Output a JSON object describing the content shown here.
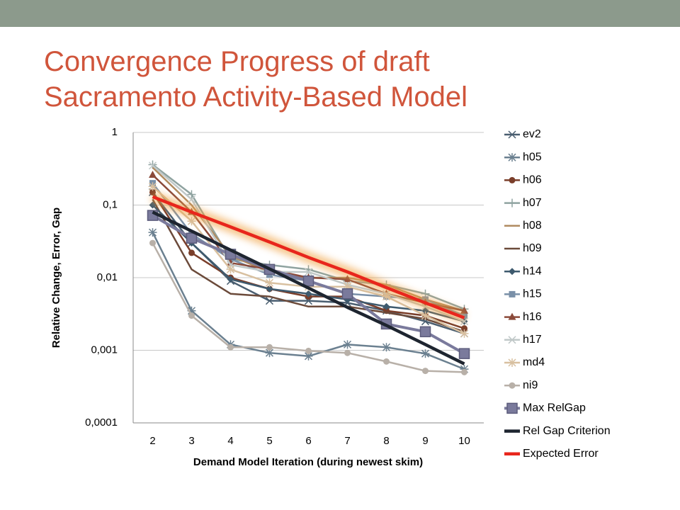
{
  "slide": {
    "title_lines": [
      "Convergence Progress of draft",
      "Sacramento Activity-Based Model"
    ]
  },
  "chart_data": {
    "type": "line",
    "log_scale": true,
    "grid": true,
    "ylabel": "Relative Change, Error, Gap",
    "xlabel": "Demand Model Iteration (during newest skim)",
    "categories": [
      "2",
      "3",
      "4",
      "5",
      "6",
      "7",
      "8",
      "9",
      "10"
    ],
    "ylim": [
      0.0001,
      1
    ],
    "yticks": [
      {
        "value": 0.0001,
        "label": "0,0001"
      },
      {
        "value": 0.001,
        "label": "0,001"
      },
      {
        "value": 0.01,
        "label": "0,01"
      },
      {
        "value": 0.1,
        "label": "0,1"
      },
      1
    ],
    "series": [
      {
        "name": "ev2",
        "color": "#4a5e70",
        "marker": "x",
        "values": [
          0.15,
          0.03,
          0.009,
          0.0048,
          0.0048,
          0.0045,
          0.0035,
          0.0025,
          0.0017
        ]
      },
      {
        "name": "h05",
        "color": "#6b8090",
        "marker": "star",
        "values": [
          0.042,
          0.0035,
          0.0012,
          0.00092,
          0.00083,
          0.0012,
          0.0011,
          0.0009,
          0.00055
        ]
      },
      {
        "name": "h06",
        "color": "#7a3e2a",
        "marker": "circle",
        "values": [
          0.15,
          0.022,
          0.01,
          0.007,
          0.0055,
          0.0055,
          0.0035,
          0.003,
          0.002
        ]
      },
      {
        "name": "h07",
        "color": "#8fa3a0",
        "marker": "plus",
        "values": [
          0.36,
          0.14,
          0.018,
          0.015,
          0.013,
          0.009,
          0.008,
          0.006,
          0.0037
        ]
      },
      {
        "name": "h08",
        "color": "#b08b60",
        "marker": "none",
        "values": [
          0.33,
          0.1,
          0.02,
          0.012,
          0.01,
          0.01,
          0.008,
          0.005,
          0.0035
        ]
      },
      {
        "name": "h09",
        "color": "#6b4a3a",
        "marker": "none",
        "values": [
          0.12,
          0.013,
          0.006,
          0.0055,
          0.004,
          0.004,
          0.0033,
          0.0027,
          0.0018
        ]
      },
      {
        "name": "h14",
        "color": "#3e5a6e",
        "marker": "diamond",
        "values": [
          0.1,
          0.03,
          0.0095,
          0.007,
          0.006,
          0.005,
          0.004,
          0.0035,
          0.0025
        ]
      },
      {
        "name": "h15",
        "color": "#7a90a8",
        "marker": "square",
        "values": [
          0.2,
          0.04,
          0.018,
          0.011,
          0.009,
          0.006,
          0.0055,
          0.005,
          0.003
        ]
      },
      {
        "name": "h16",
        "color": "#8b4a3a",
        "marker": "triangle",
        "values": [
          0.26,
          0.08,
          0.016,
          0.013,
          0.01,
          0.0095,
          0.006,
          0.0045,
          0.0035
        ]
      },
      {
        "name": "h17",
        "color": "#c0c8c8",
        "marker": "x",
        "values": [
          0.35,
          0.12,
          0.015,
          0.012,
          0.012,
          0.008,
          0.006,
          0.004,
          0.0025
        ]
      },
      {
        "name": "md4",
        "color": "#d8c0a0",
        "marker": "star",
        "values": [
          0.18,
          0.06,
          0.013,
          0.0085,
          0.0075,
          0.0075,
          0.0055,
          0.003,
          0.0017
        ]
      },
      {
        "name": "ni9",
        "color": "#b8b0a8",
        "marker": "circle",
        "values": [
          0.03,
          0.003,
          0.0011,
          0.0011,
          0.00098,
          0.00092,
          0.0007,
          0.00052,
          0.0005
        ]
      },
      {
        "name": "Max RelGap",
        "color": "#7a7a9c",
        "marker": "large-square",
        "values": [
          0.072,
          0.035,
          0.021,
          0.013,
          0.009,
          0.006,
          0.0023,
          0.0018,
          0.0009
        ]
      },
      {
        "name": "Rel Gap Criterion",
        "color": "#1e2530",
        "marker": "none",
        "heavy": true,
        "values": [
          0.08,
          0.0438,
          0.024,
          0.0132,
          0.0072,
          0.0039,
          0.0022,
          0.0012,
          0.00065
        ]
      },
      {
        "name": "Expected Error",
        "color": "#e8261c",
        "marker": "none",
        "heavy": true,
        "glow": true,
        "values": [
          0.13,
          0.08,
          0.05,
          0.031,
          0.019,
          0.012,
          0.0073,
          0.0045,
          0.0028
        ]
      }
    ]
  }
}
